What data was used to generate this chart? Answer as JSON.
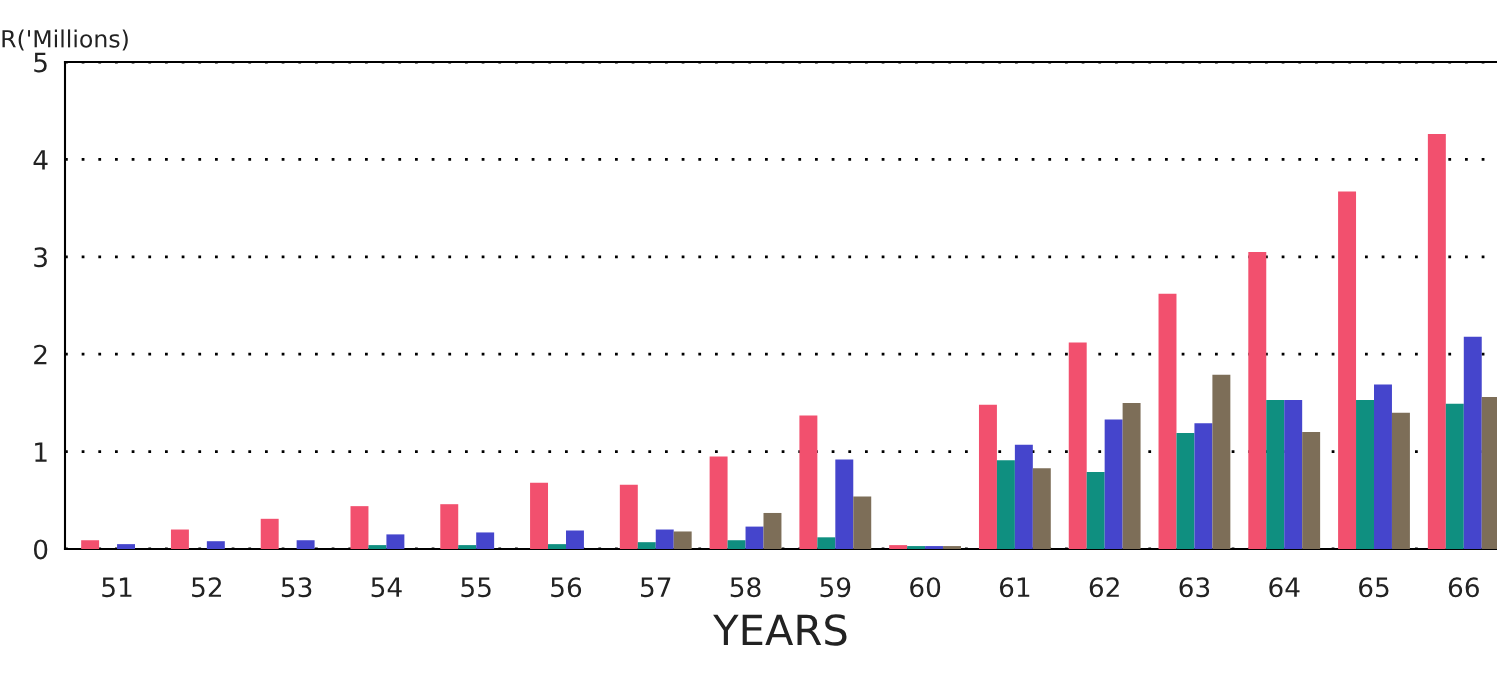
{
  "chart_data": {
    "type": "bar",
    "ylabel": "R('Millions)",
    "xlabel": "YEARS",
    "categories": [
      "51",
      "52",
      "53",
      "54",
      "55",
      "56",
      "57",
      "58",
      "59",
      "60",
      "61",
      "62",
      "63",
      "64",
      "65",
      "66"
    ],
    "series": [
      {
        "color": "#f2506e",
        "values": [
          0.09,
          0.2,
          0.31,
          0.44,
          0.46,
          0.68,
          0.66,
          0.95,
          1.37,
          0.04,
          1.48,
          2.12,
          2.62,
          3.05,
          3.67,
          4.26
        ]
      },
      {
        "color": "#0f8f80",
        "values": [
          null,
          null,
          null,
          0.04,
          0.04,
          0.05,
          0.07,
          0.09,
          0.12,
          0.03,
          0.91,
          0.79,
          1.19,
          1.53,
          1.53,
          1.49
        ]
      },
      {
        "color": "#4545cc",
        "values": [
          0.05,
          0.08,
          0.09,
          0.15,
          0.17,
          0.19,
          0.2,
          0.23,
          0.92,
          0.03,
          1.07,
          1.33,
          1.29,
          1.53,
          1.69,
          2.18
        ]
      },
      {
        "color": "#7d6e58",
        "values": [
          null,
          null,
          null,
          null,
          null,
          null,
          0.18,
          0.37,
          0.54,
          0.03,
          0.83,
          1.5,
          1.79,
          1.2,
          1.4,
          1.56
        ]
      }
    ],
    "ylim": [
      0,
      5
    ],
    "yticks": [
      0,
      1,
      2,
      3,
      4,
      5
    ],
    "grid": "y",
    "legend": false
  }
}
